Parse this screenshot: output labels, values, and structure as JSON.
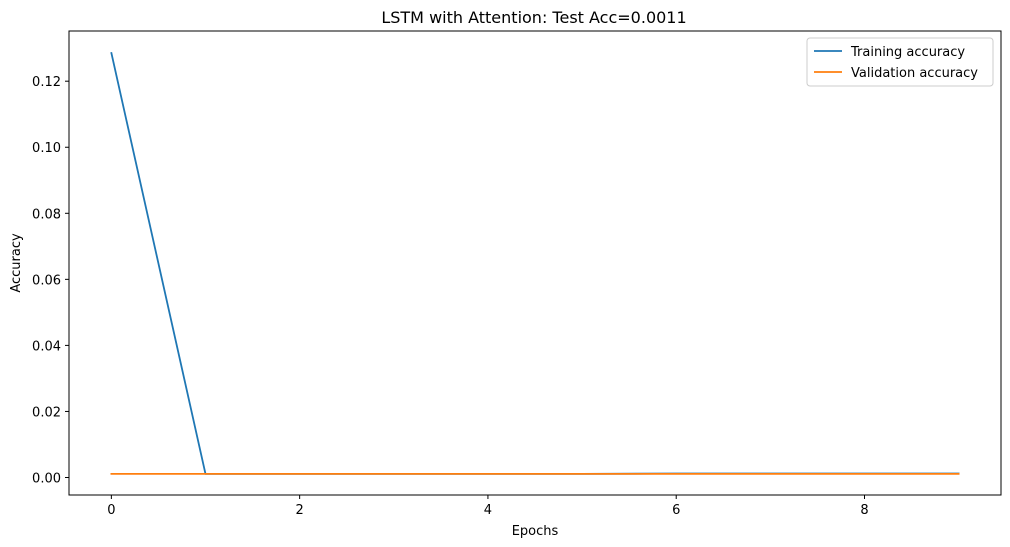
{
  "chart_data": {
    "type": "line",
    "title": "LSTM with Attention: Test Acc=0.0011",
    "xlabel": "Epochs",
    "ylabel": "Accuracy",
    "xlim": [
      -0.45,
      9.45
    ],
    "ylim": [
      -0.0053,
      0.1352
    ],
    "x": [
      0,
      1,
      2,
      3,
      4,
      5,
      6,
      7,
      8,
      9
    ],
    "x_ticks": [
      0,
      2,
      4,
      6,
      8
    ],
    "x_tick_labels": [
      "0",
      "2",
      "4",
      "6",
      "8"
    ],
    "y_ticks": [
      0.0,
      0.02,
      0.04,
      0.06,
      0.08,
      0.1,
      0.12
    ],
    "y_tick_labels": [
      "0.00",
      "0.02",
      "0.04",
      "0.06",
      "0.08",
      "0.10",
      "0.12"
    ],
    "grid": false,
    "legend_position": "top-right",
    "series": [
      {
        "name": "Training accuracy",
        "color": "#1f77b4",
        "values": [
          0.1285,
          0.0011,
          0.0011,
          0.0011,
          0.0011,
          0.0011,
          0.0012,
          0.0012,
          0.0012,
          0.0012
        ]
      },
      {
        "name": "Validation accuracy",
        "color": "#ff7f0e",
        "values": [
          0.0011,
          0.0011,
          0.0011,
          0.0011,
          0.0011,
          0.0011,
          0.0011,
          0.0011,
          0.0011,
          0.0011
        ]
      }
    ]
  }
}
